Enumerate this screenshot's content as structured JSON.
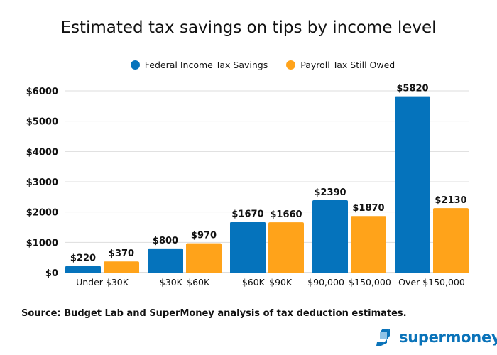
{
  "chart_data": {
    "type": "bar",
    "title": "Estimated tax savings on tips by income level",
    "categories": [
      "Under $30K",
      "$30K–$60K",
      "$60K–$90K",
      "$90,000–$150,000",
      "Over $150,000"
    ],
    "series": [
      {
        "name": "Federal Income Tax Savings",
        "values": [
          220,
          800,
          1670,
          2390,
          5820
        ],
        "color": "#0573BC"
      },
      {
        "name": "Payroll Tax Still Owed",
        "values": [
          370,
          970,
          1660,
          1870,
          2130
        ],
        "color": "#FFA31A"
      }
    ],
    "yticks": [
      "$0",
      "$1000",
      "$2000",
      "$3000",
      "$4000",
      "$5000",
      "$6000"
    ],
    "ylim": [
      0,
      6000
    ],
    "grid": true,
    "legend_position": "top-center",
    "data_label_prefix": "$"
  },
  "source": "Source: Budget Lab and SuperMoney analysis of tax deduction estimates.",
  "logo": {
    "text": "supermoney",
    "icon": "supermoney-cube-logo-icon"
  }
}
